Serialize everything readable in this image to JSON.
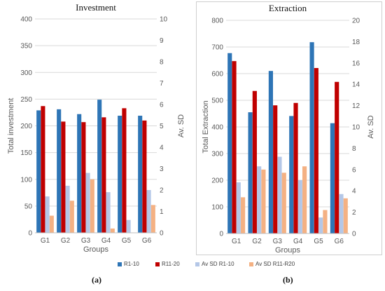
{
  "legend": [
    {
      "label": "R1-10",
      "color": "#2e75b6"
    },
    {
      "label": "R11-20",
      "color": "#c00000"
    },
    {
      "label": "Av SD R1-10",
      "color": "#b4c7e7"
    },
    {
      "label": "Av SD R11-R20",
      "color": "#f4b183"
    }
  ],
  "captions": {
    "a": "(a)",
    "b": "(b)"
  },
  "chart_data": [
    {
      "type": "bar",
      "title": "Investment",
      "xlabel": "Groups",
      "ylabel": "Total investment",
      "y2label": "Av. SD",
      "categories": [
        "G1",
        "G2",
        "G3",
        "G4",
        "G5",
        "G6"
      ],
      "ylim": [
        0,
        400
      ],
      "yticks": [
        0,
        50,
        100,
        150,
        200,
        250,
        300,
        350,
        400
      ],
      "y2lim": [
        0,
        10
      ],
      "y2ticks": [
        0,
        1,
        2,
        3,
        4,
        5,
        6,
        7,
        8,
        9,
        10
      ],
      "grid": true,
      "legend_position": "bottom",
      "series": [
        {
          "name": "R1-10",
          "axis": "left",
          "values": [
            229,
            231,
            222,
            249,
            219,
            219
          ]
        },
        {
          "name": "R11-20",
          "axis": "left",
          "values": [
            237,
            208,
            207,
            216,
            233,
            210
          ]
        },
        {
          "name": "Av SD R1-10",
          "axis": "right",
          "values": [
            1.7,
            2.2,
            2.8,
            1.9,
            0.6,
            2.0
          ]
        },
        {
          "name": "Av SD R11-R20",
          "axis": "right",
          "values": [
            0.8,
            1.5,
            2.5,
            0.2,
            0.0,
            1.3
          ]
        }
      ]
    },
    {
      "type": "bar",
      "title": "Extraction",
      "xlabel": "Groups",
      "ylabel": "Total Extraction",
      "y2label": "Av. SD",
      "categories": [
        "G1",
        "G2",
        "G3",
        "G4",
        "G5",
        "G6"
      ],
      "ylim": [
        0,
        800
      ],
      "yticks": [
        0,
        100,
        200,
        300,
        400,
        500,
        600,
        700,
        800
      ],
      "y2lim": [
        0,
        20
      ],
      "y2ticks": [
        0,
        2,
        4,
        6,
        8,
        10,
        12,
        14,
        16,
        18,
        20
      ],
      "grid": true,
      "legend_position": "bottom",
      "series": [
        {
          "name": "R1-10",
          "axis": "left",
          "values": [
            677,
            455,
            610,
            441,
            718,
            414
          ]
        },
        {
          "name": "R11-20",
          "axis": "left",
          "values": [
            647,
            535,
            481,
            490,
            621,
            569
          ]
        },
        {
          "name": "Av SD R1-10",
          "axis": "right",
          "values": [
            4.8,
            6.3,
            7.2,
            5.0,
            1.5,
            3.7
          ]
        },
        {
          "name": "Av SD R11-R20",
          "axis": "right",
          "values": [
            3.4,
            6.0,
            5.7,
            6.3,
            2.2,
            3.3
          ]
        }
      ]
    }
  ]
}
